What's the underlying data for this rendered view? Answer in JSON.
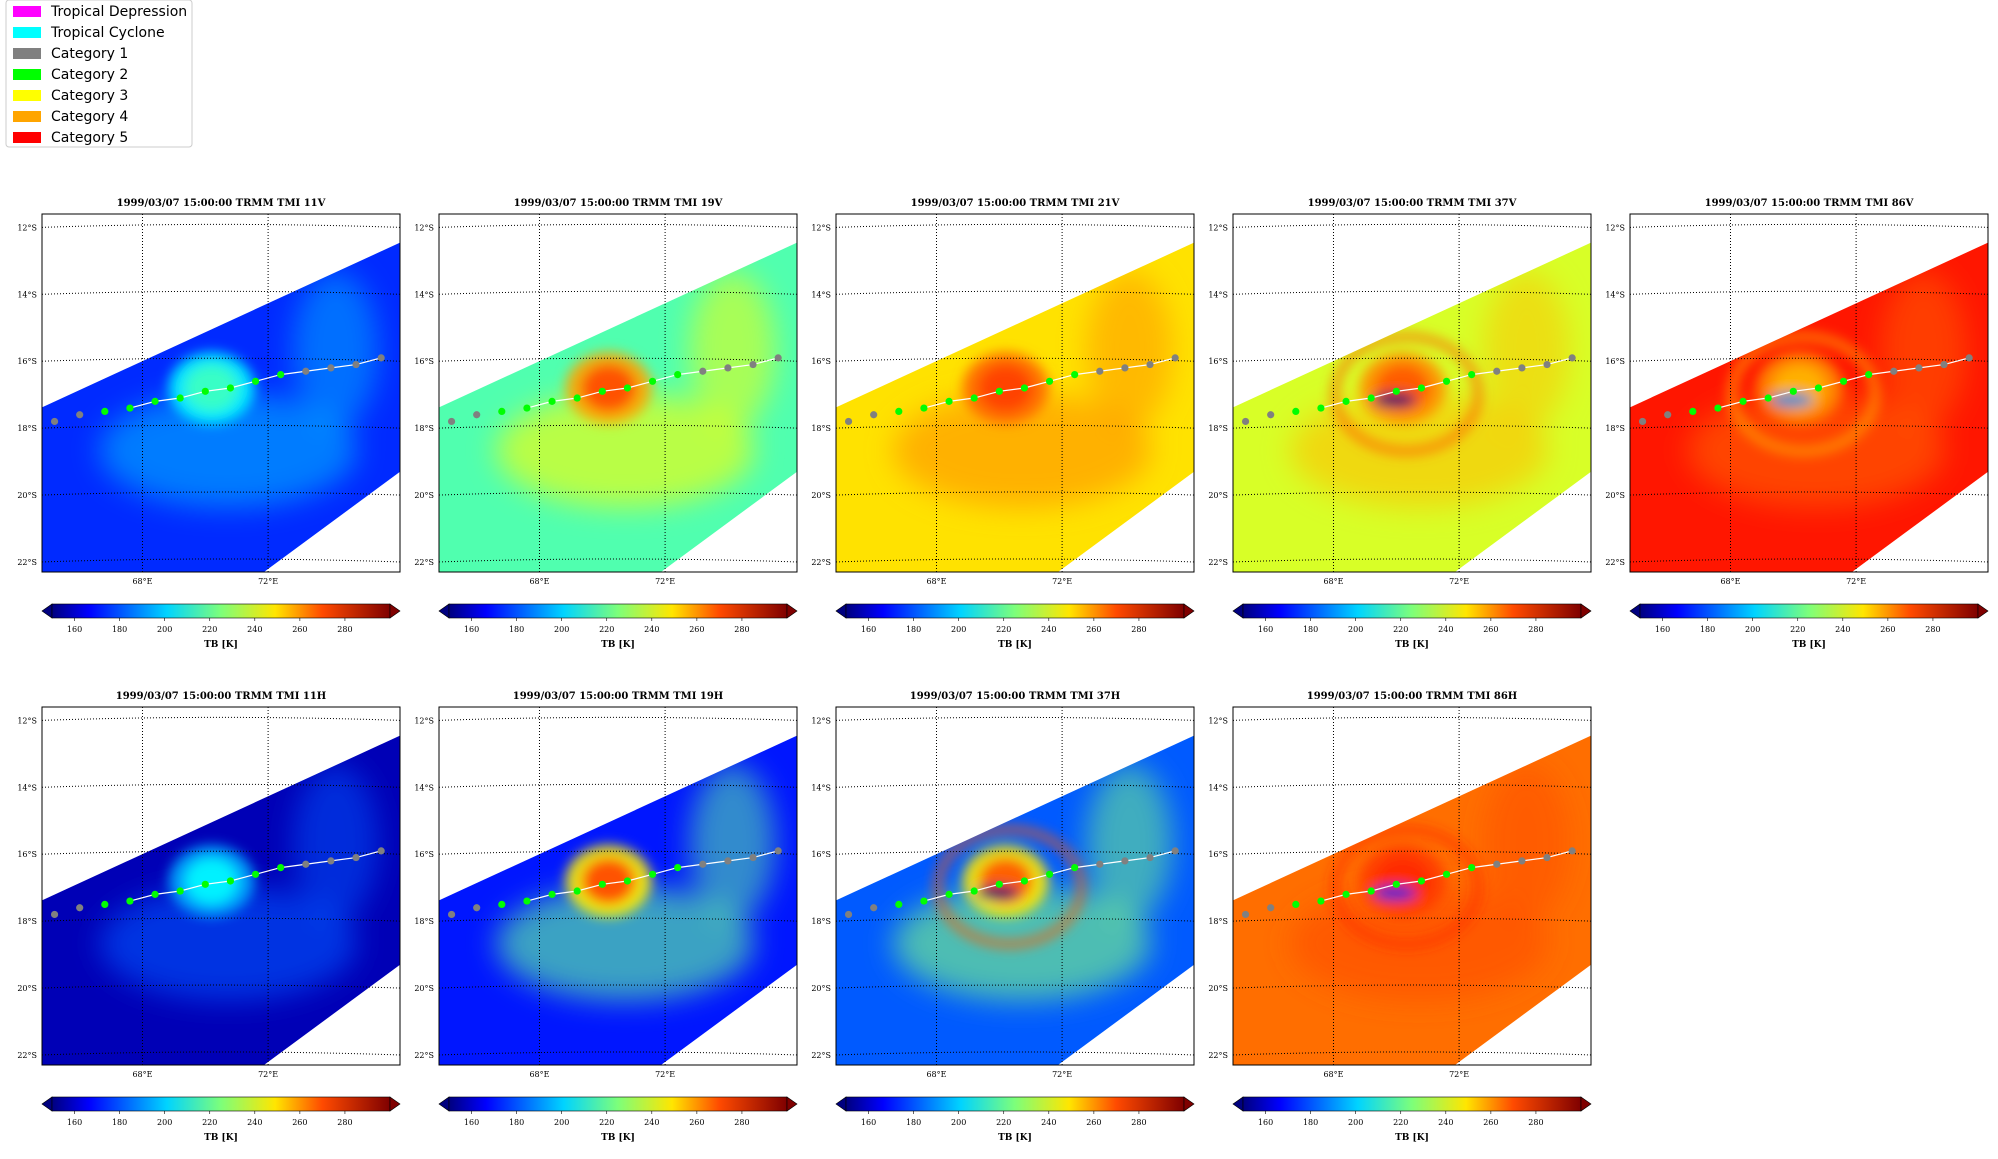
{
  "legend": {
    "entries": [
      {
        "label": "Tropical Depression",
        "color": "#ff00ff"
      },
      {
        "label": "Tropical Cyclone",
        "color": "#00ffff"
      },
      {
        "label": "Category 1",
        "color": "#808080"
      },
      {
        "label": "Category 2",
        "color": "#00ff00"
      },
      {
        "label": "Category 3",
        "color": "#ffff00"
      },
      {
        "label": "Category 4",
        "color": "#ffa500"
      },
      {
        "label": "Category 5",
        "color": "#ff0000"
      }
    ]
  },
  "map": {
    "lat_labels": [
      "12°S",
      "14°S",
      "16°S",
      "18°S",
      "20°S",
      "22°S"
    ],
    "lon_labels": [
      "68°E",
      "72°E"
    ]
  },
  "colorbar": {
    "ticks": [
      "160",
      "180",
      "200",
      "220",
      "240",
      "260",
      "280"
    ],
    "label": "TB [K]",
    "colormap": "jet",
    "range": [
      150,
      300
    ]
  },
  "panels": [
    {
      "title": "1999/03/07 15:00:00  TRMM TMI 11V",
      "bg": 175,
      "storm": 215,
      "ring": false
    },
    {
      "title": "1999/03/07 15:00:00  TRMM TMI 19V",
      "bg": 218,
      "storm": 270,
      "ring": false
    },
    {
      "title": "1999/03/07 15:00:00  TRMM TMI 21V",
      "bg": 248,
      "storm": 272,
      "ring": false
    },
    {
      "title": "1999/03/07 15:00:00  TRMM TMI 37V",
      "bg": 238,
      "storm": 268,
      "ring": true
    },
    {
      "title": "1999/03/07 15:00:00  TRMM TMI 86V",
      "bg": 278,
      "storm": 255,
      "ring": true
    },
    {
      "title": "1999/03/07 15:00:00  TRMM TMI 11H",
      "bg": 158,
      "storm": 205,
      "ring": false
    },
    {
      "title": "1999/03/07 15:00:00  TRMM TMI 19H",
      "bg": 172,
      "storm": 270,
      "ring": false
    },
    {
      "title": "1999/03/07 15:00:00  TRMM TMI 37H",
      "bg": 182,
      "storm": 268,
      "ring": true
    },
    {
      "title": "1999/03/07 15:00:00  TRMM TMI 86H",
      "bg": 265,
      "storm": 275,
      "ring": true
    }
  ],
  "track": [
    {
      "lon": 65.2,
      "lat": -17.8,
      "cat": "Category 1"
    },
    {
      "lon": 66.0,
      "lat": -17.6,
      "cat": "Category 1"
    },
    {
      "lon": 66.8,
      "lat": -17.5,
      "cat": "Category 2"
    },
    {
      "lon": 67.6,
      "lat": -17.4,
      "cat": "Category 2"
    },
    {
      "lon": 68.4,
      "lat": -17.2,
      "cat": "Category 2"
    },
    {
      "lon": 69.2,
      "lat": -17.1,
      "cat": "Category 2"
    },
    {
      "lon": 70.0,
      "lat": -16.9,
      "cat": "Category 2"
    },
    {
      "lon": 70.8,
      "lat": -16.8,
      "cat": "Category 2"
    },
    {
      "lon": 71.6,
      "lat": -16.6,
      "cat": "Category 2"
    },
    {
      "lon": 72.4,
      "lat": -16.4,
      "cat": "Category 2"
    },
    {
      "lon": 73.2,
      "lat": -16.3,
      "cat": "Category 1"
    },
    {
      "lon": 74.0,
      "lat": -16.2,
      "cat": "Category 1"
    },
    {
      "lon": 74.8,
      "lat": -16.1,
      "cat": "Category 1"
    },
    {
      "lon": 75.6,
      "lat": -15.9,
      "cat": "Category 1"
    }
  ]
}
